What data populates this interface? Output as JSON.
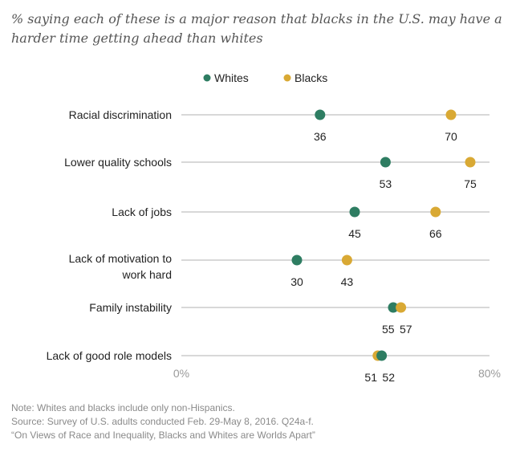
{
  "subtitle": "% saying each of these is a major reason that blacks in the U.S. may have a harder time getting ahead than whites",
  "colors": {
    "whites": "#2e7d62",
    "blacks": "#d9a934",
    "line": "#cccccc"
  },
  "notes": {
    "note": "Note: Whites and blacks include only non-Hispanics.",
    "source": "Source: Survey of U.S. adults conducted Feb. 29-May 8, 2016. Q24a-f.",
    "report": "“On Views of Race and Inequality, Blacks and Whites are Worlds Apart”"
  },
  "chart_data": {
    "type": "scatter",
    "title": "% saying each of these is a major reason that blacks in the U.S. may have a harder time getting ahead than whites",
    "legend_position": "top",
    "xlim": [
      0,
      80
    ],
    "x_ticks": [
      "0%",
      "80%"
    ],
    "categories": [
      "Racial discrimination",
      "Lower quality schools",
      "Lack of jobs",
      "Lack of motivation to work hard",
      "Family instability",
      "Lack of good role models"
    ],
    "category_lines": [
      [
        "Racial discrimination"
      ],
      [
        "Lower quality schools"
      ],
      [
        "Lack of jobs"
      ],
      [
        "Lack of motivation to",
        "work hard"
      ],
      [
        "Family instability"
      ],
      [
        "Lack of good role models"
      ]
    ],
    "series": [
      {
        "name": "Whites",
        "values": [
          36,
          53,
          45,
          30,
          55,
          52
        ]
      },
      {
        "name": "Blacks",
        "values": [
          70,
          75,
          66,
          43,
          57,
          51
        ]
      }
    ]
  }
}
